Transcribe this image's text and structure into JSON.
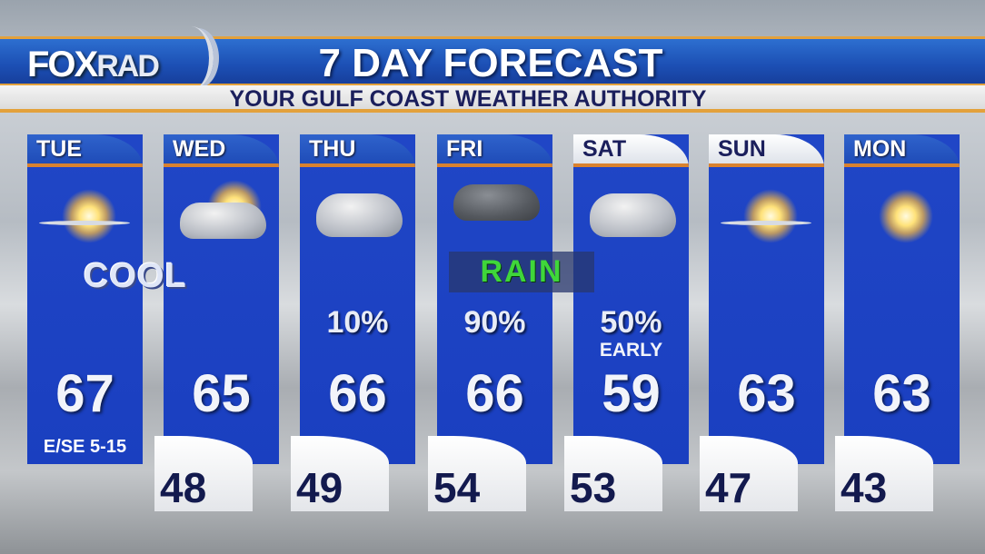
{
  "header": {
    "logo": "FOX",
    "logo_suffix": "RAD",
    "title": "7 DAY FORECAST",
    "subtitle": "YOUR GULF COAST WEATHER AUTHORITY"
  },
  "days": [
    {
      "day": "TUE",
      "icon": "mostly-sunny-icon",
      "high": "67",
      "wind": "E/SE 5-15"
    },
    {
      "day": "WED",
      "icon": "partly-cloudy-icon",
      "high": "65",
      "low": "48"
    },
    {
      "day": "THU",
      "icon": "cloudy-icon",
      "high": "66",
      "pop": "10%",
      "low": "49"
    },
    {
      "day": "FRI",
      "icon": "rain-cloud-icon",
      "high": "66",
      "pop": "90%",
      "low": "54"
    },
    {
      "day": "SAT",
      "icon": "cloudy-icon",
      "high": "59",
      "pop": "50%",
      "note": "EARLY",
      "low": "53"
    },
    {
      "day": "SUN",
      "icon": "mostly-sunny-icon",
      "high": "63",
      "low": "47"
    },
    {
      "day": "MON",
      "icon": "sunny-icon",
      "high": "63",
      "low": "43"
    }
  ],
  "overlays": {
    "cool": "COOL",
    "rain": "RAIN"
  },
  "colors": {
    "panel_blue": "#1f45c4",
    "accent_orange": "#d9822f",
    "rain_green": "#3fd63a",
    "low_text": "#131a4e"
  }
}
